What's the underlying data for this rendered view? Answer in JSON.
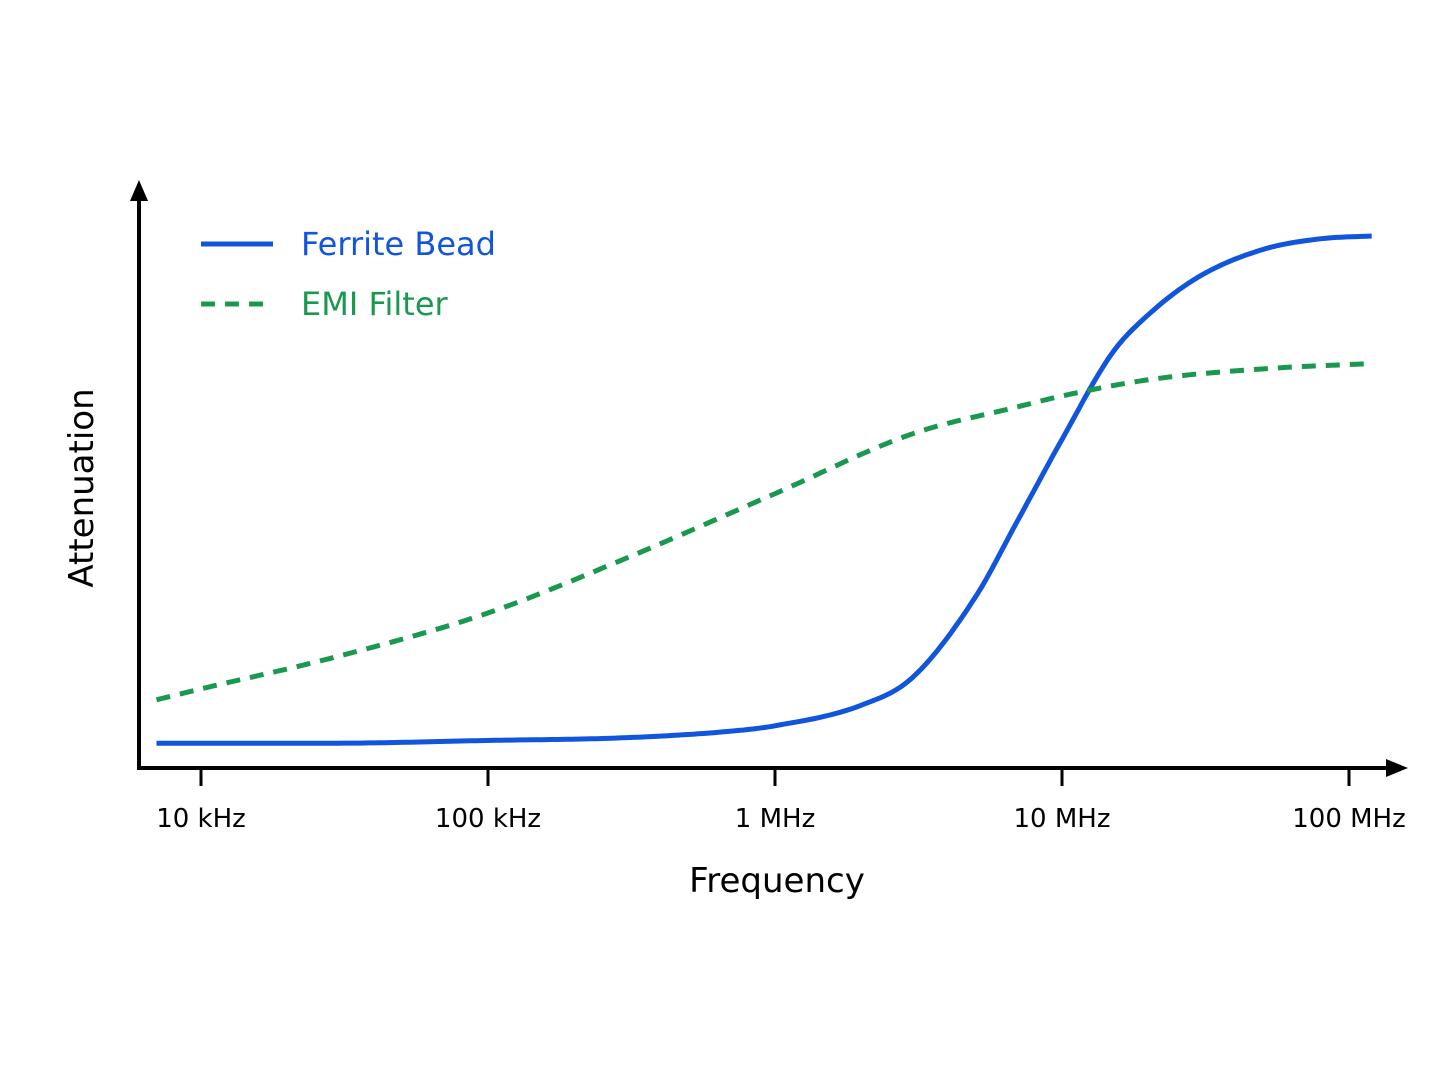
{
  "chart_data": {
    "type": "line",
    "title": "",
    "xlabel": "Frequency",
    "ylabel": "Attenuation",
    "x_scale": "log",
    "y_scale": "relative (no tick labels)",
    "xlim": [
      "7 kHz",
      "120 MHz"
    ],
    "ylim": [
      0,
      1
    ],
    "x_ticks": [
      {
        "label": "10 kHz",
        "value_hz": 10000
      },
      {
        "label": "100 kHz",
        "value_hz": 100000
      },
      {
        "label": "1 MHz",
        "value_hz": 1000000
      },
      {
        "label": "10 MHz",
        "value_hz": 10000000
      },
      {
        "label": "100 MHz",
        "value_hz": 100000000
      }
    ],
    "grid": false,
    "legend_position": "top-left",
    "series": [
      {
        "name": "Ferrite Bead",
        "color": "#1155dd",
        "style": "solid",
        "x_hz": [
          7000,
          10000,
          30000,
          100000,
          300000,
          700000,
          1000000,
          2000000,
          3000000,
          5000000,
          7000000,
          10000000,
          15000000,
          20000000,
          30000000,
          50000000,
          80000000,
          120000000
        ],
        "y": [
          0.02,
          0.02,
          0.02,
          0.025,
          0.03,
          0.042,
          0.052,
          0.09,
          0.14,
          0.29,
          0.43,
          0.58,
          0.74,
          0.81,
          0.88,
          0.93,
          0.95,
          0.955
        ]
      },
      {
        "name": "EMI Filter",
        "color": "#1a9850",
        "style": "dashed",
        "x_hz": [
          7000,
          10000,
          30000,
          100000,
          300000,
          1000000,
          3000000,
          7000000,
          10000000,
          20000000,
          50000000,
          120000000
        ],
        "y": [
          0.1,
          0.12,
          0.18,
          0.26,
          0.36,
          0.48,
          0.59,
          0.64,
          0.66,
          0.69,
          0.71,
          0.72
        ]
      }
    ]
  },
  "legend": [
    {
      "label": "Ferrite Bead",
      "color": "#1155dd",
      "style": "solid"
    },
    {
      "label": "EMI Filter",
      "color": "#1a9850",
      "style": "dashed"
    }
  ]
}
